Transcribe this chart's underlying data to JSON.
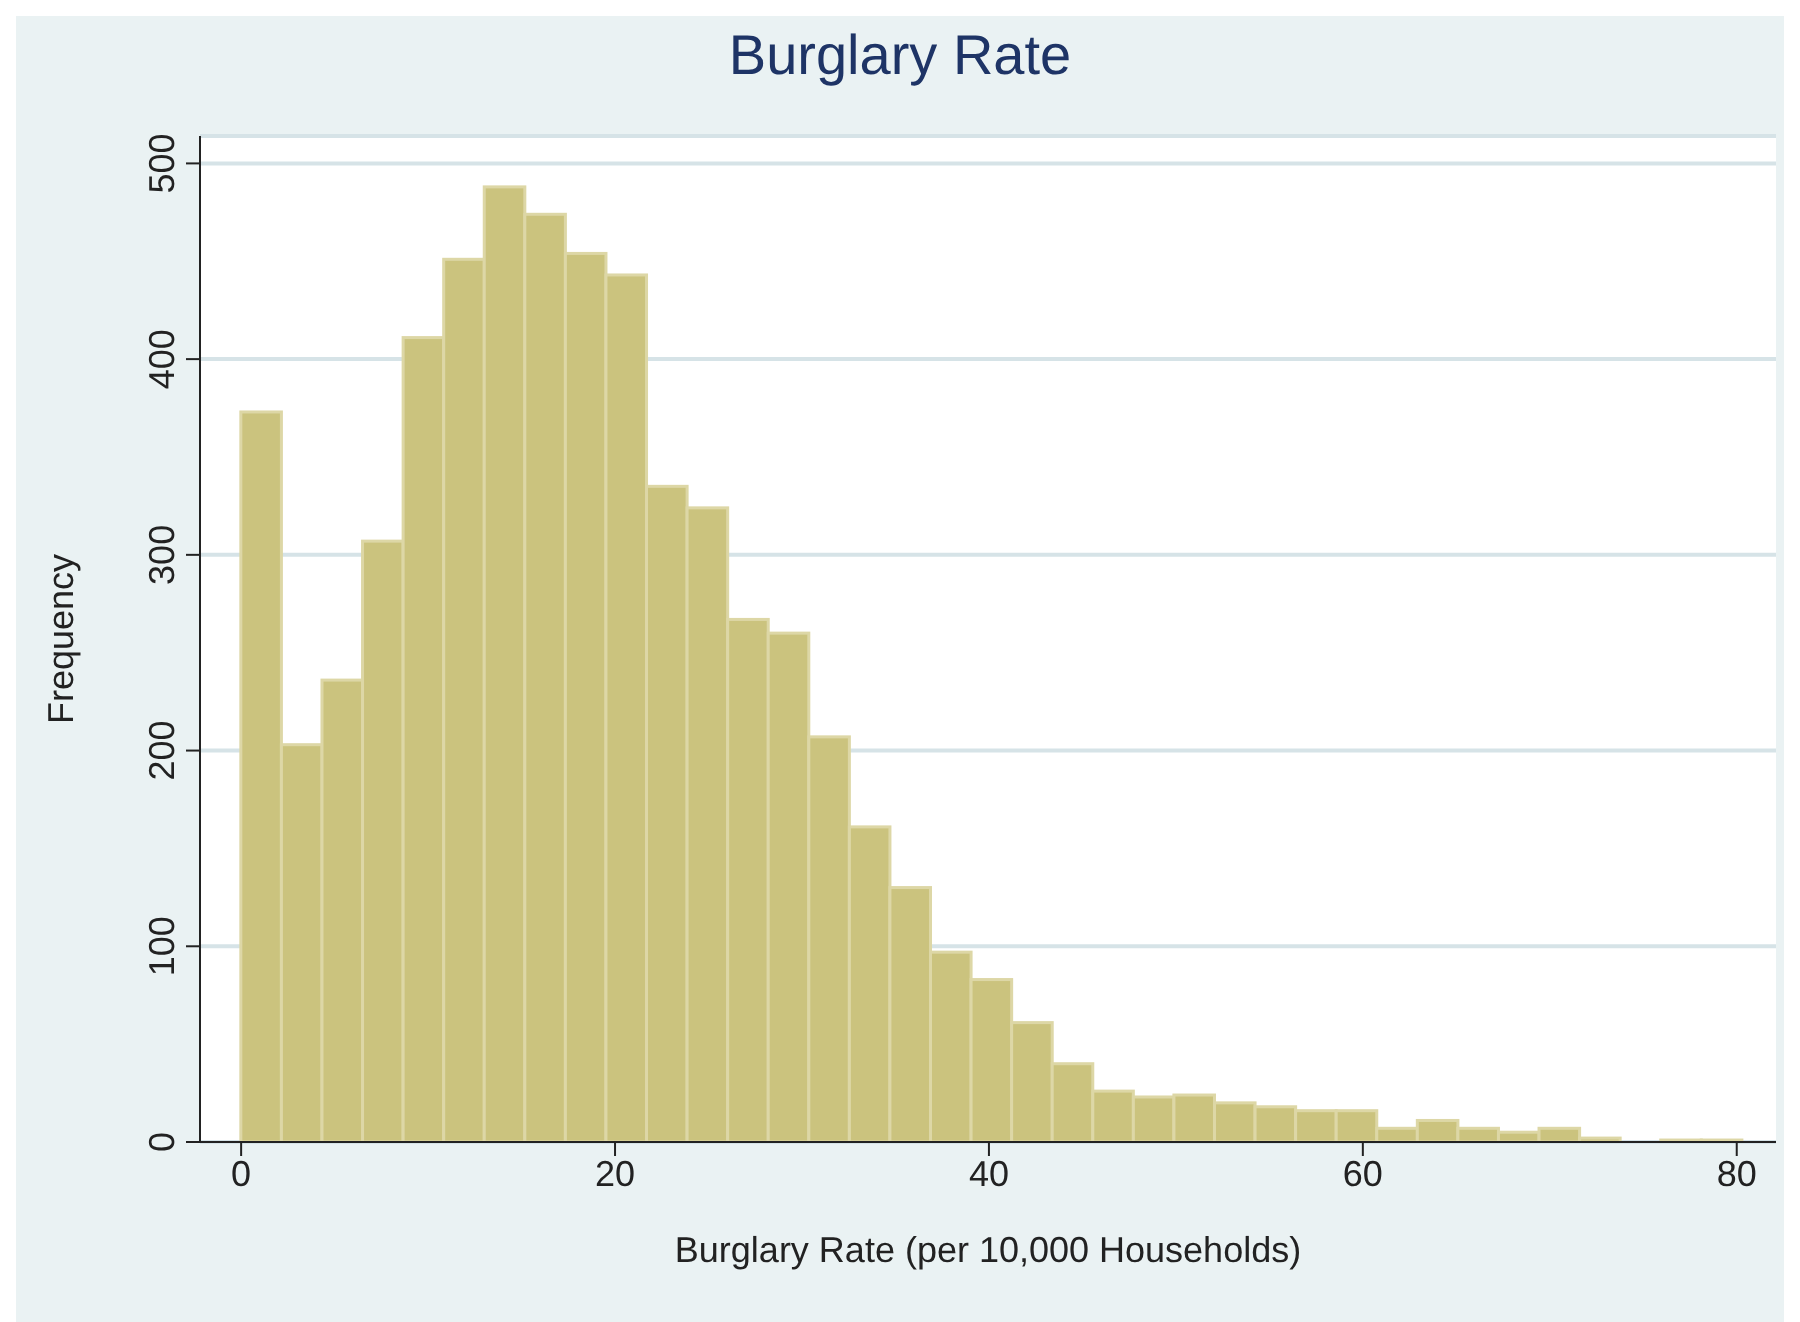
{
  "chart_data": {
    "type": "histogram",
    "title": "Burglary Rate",
    "xlabel": "Burglary Rate (per 10,000 Households)",
    "ylabel": "Frequency",
    "bins": [
      0,
      2.17,
      4.34,
      6.51,
      8.68,
      10.85,
      13.02,
      15.19,
      17.36,
      19.53,
      21.7,
      23.87,
      26.04,
      28.21,
      30.38,
      32.55,
      34.72,
      36.89,
      39.06,
      41.23,
      43.4,
      45.57,
      47.74,
      49.91,
      52.08,
      54.25,
      56.42,
      58.59,
      60.76,
      62.93,
      65.1,
      67.27,
      69.44,
      71.61,
      73.78,
      75.95,
      78.12,
      80.29
    ],
    "values": [
      373,
      203,
      236,
      307,
      411,
      451,
      488,
      474,
      454,
      443,
      335,
      324,
      267,
      260,
      207,
      161,
      130,
      97,
      83,
      61,
      40,
      26,
      23,
      24,
      20,
      18,
      16,
      16,
      7,
      11,
      7,
      5,
      7,
      2,
      0,
      1,
      1
    ],
    "color": "#cbc37e",
    "xlim": [
      -2.2,
      82.1
    ],
    "xticks": [
      0,
      20,
      40,
      60,
      80
    ],
    "ylim": [
      0,
      514
    ],
    "yticks": [
      0,
      100,
      200,
      300,
      400,
      500
    ],
    "grid": "y"
  }
}
